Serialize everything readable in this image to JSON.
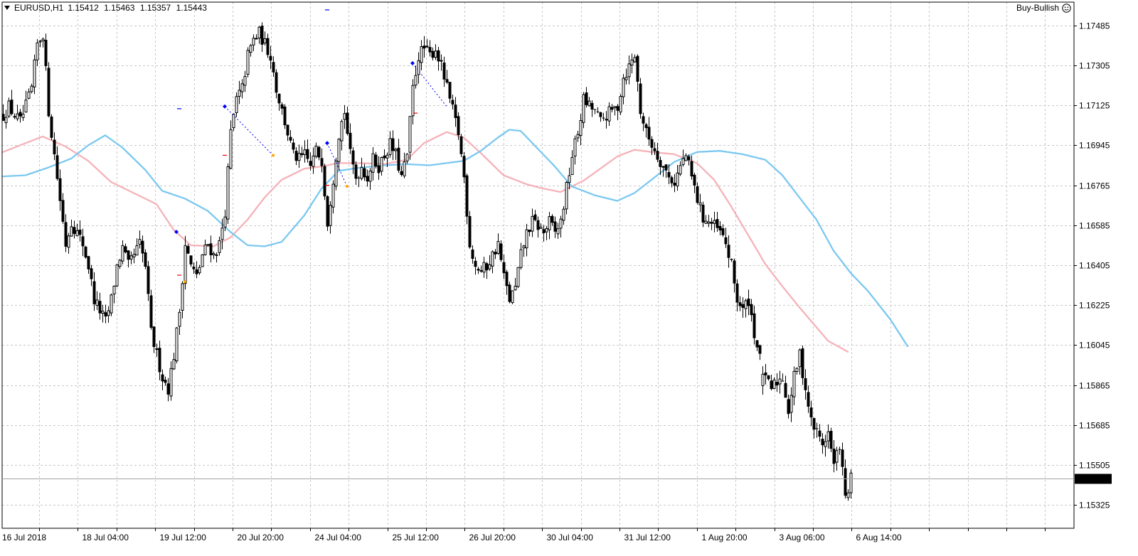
{
  "header": {
    "symbol": "EURUSD,H1",
    "open": "1.15412",
    "high": "1.15463",
    "low": "1.15357",
    "close": "1.15443"
  },
  "advisor": {
    "name": "Buy-Bullish",
    "icon": "smiley-icon"
  },
  "colors": {
    "bg": "#ffffff",
    "grid": "#c8c8c8",
    "candle": "#000000",
    "ma_fast": "#f5b2b8",
    "ma_slow": "#7cc8f0",
    "price_line": "#a0a0a0",
    "marker_blue": "#0000ff",
    "marker_red": "#ff0000",
    "marker_orange": "#ffa500"
  },
  "chart_data": {
    "type": "candlestick",
    "ylim": [
      1.1522,
      1.1759
    ],
    "y_ticks": [
      "1.17485",
      "1.17305",
      "1.17125",
      "1.16945",
      "1.16765",
      "1.16585",
      "1.16405",
      "1.16225",
      "1.16045",
      "1.15865",
      "1.15685",
      "1.15505",
      "1.15325"
    ],
    "x_ticks": [
      "16 Jul 2018",
      "18 Jul 04:00",
      "19 Jul 12:00",
      "20 Jul 20:00",
      "24 Jul 04:00",
      "25 Jul 12:00",
      "26 Jul 20:00",
      "30 Jul 04:00",
      "31 Jul 12:00",
      "1 Aug 20:00",
      "3 Aug 06:00",
      "6 Aug 14:00"
    ],
    "current_price": "1.15443",
    "close_path": [
      [
        0,
        1.1708
      ],
      [
        2,
        1.1712
      ],
      [
        4,
        1.1708
      ],
      [
        6,
        1.1705
      ],
      [
        8,
        1.1712
      ],
      [
        10,
        1.172
      ],
      [
        12,
        1.174
      ],
      [
        14,
        1.1745
      ],
      [
        16,
        1.171
      ],
      [
        18,
        1.169
      ],
      [
        20,
        1.167
      ],
      [
        22,
        1.165
      ],
      [
        24,
        1.166
      ],
      [
        26,
        1.1655
      ],
      [
        28,
        1.165
      ],
      [
        30,
        1.164
      ],
      [
        32,
        1.1625
      ],
      [
        34,
        1.162
      ],
      [
        36,
        1.1615
      ],
      [
        38,
        1.1625
      ],
      [
        40,
        1.164
      ],
      [
        42,
        1.1648
      ],
      [
        44,
        1.164
      ],
      [
        46,
        1.1645
      ],
      [
        48,
        1.165
      ],
      [
        50,
        1.164
      ],
      [
        52,
        1.161
      ],
      [
        54,
        1.16
      ],
      [
        56,
        1.159
      ],
      [
        58,
        1.1585
      ],
      [
        60,
        1.16
      ],
      [
        62,
        1.162
      ],
      [
        64,
        1.165
      ],
      [
        66,
        1.164
      ],
      [
        68,
        1.1635
      ],
      [
        70,
        1.1645
      ],
      [
        72,
        1.165
      ],
      [
        74,
        1.1645
      ],
      [
        76,
        1.165
      ],
      [
        78,
        1.1665
      ],
      [
        80,
        1.17
      ],
      [
        82,
        1.1715
      ],
      [
        84,
        1.172
      ],
      [
        86,
        1.1735
      ],
      [
        88,
        1.1742
      ],
      [
        90,
        1.1745
      ],
      [
        92,
        1.174
      ],
      [
        94,
        1.1735
      ],
      [
        96,
        1.172
      ],
      [
        98,
        1.171
      ],
      [
        100,
        1.17
      ],
      [
        102,
        1.169
      ],
      [
        104,
        1.1688
      ],
      [
        106,
        1.169
      ],
      [
        108,
        1.1685
      ],
      [
        110,
        1.1692
      ],
      [
        112,
        1.1688
      ],
      [
        114,
        1.166
      ],
      [
        116,
        1.168
      ],
      [
        118,
        1.17
      ],
      [
        120,
        1.171
      ],
      [
        122,
        1.169
      ],
      [
        124,
        1.168
      ],
      [
        126,
        1.1685
      ],
      [
        128,
        1.168
      ],
      [
        130,
        1.1688
      ],
      [
        132,
        1.1685
      ],
      [
        134,
        1.169
      ],
      [
        136,
        1.1695
      ],
      [
        138,
        1.169
      ],
      [
        140,
        1.168
      ],
      [
        142,
        1.169
      ],
      [
        144,
        1.172
      ],
      [
        146,
        1.1735
      ],
      [
        148,
        1.1738
      ],
      [
        150,
        1.1735
      ],
      [
        152,
        1.1738
      ],
      [
        154,
        1.173
      ],
      [
        156,
        1.172
      ],
      [
        158,
        1.171
      ],
      [
        160,
        1.17
      ],
      [
        162,
        1.168
      ],
      [
        164,
        1.165
      ],
      [
        166,
        1.164
      ],
      [
        168,
        1.1638
      ],
      [
        170,
        1.164
      ],
      [
        172,
        1.1645
      ],
      [
        174,
        1.165
      ],
      [
        176,
        1.1635
      ],
      [
        178,
        1.1625
      ],
      [
        180,
        1.163
      ],
      [
        182,
        1.1645
      ],
      [
        184,
        1.1655
      ],
      [
        186,
        1.166
      ],
      [
        188,
        1.1658
      ],
      [
        190,
        1.1655
      ],
      [
        192,
        1.166
      ],
      [
        194,
        1.1655
      ],
      [
        196,
        1.166
      ],
      [
        198,
        1.1675
      ],
      [
        200,
        1.169
      ],
      [
        202,
        1.17
      ],
      [
        204,
        1.1715
      ],
      [
        206,
        1.1712
      ],
      [
        208,
        1.171
      ],
      [
        210,
        1.1705
      ],
      [
        212,
        1.1708
      ],
      [
        214,
        1.171
      ],
      [
        216,
        1.1712
      ],
      [
        218,
        1.1725
      ],
      [
        220,
        1.173
      ],
      [
        222,
        1.1735
      ],
      [
        224,
        1.171
      ],
      [
        226,
        1.17
      ],
      [
        228,
        1.1695
      ],
      [
        230,
        1.169
      ],
      [
        232,
        1.1685
      ],
      [
        234,
        1.168
      ],
      [
        236,
        1.1678
      ],
      [
        238,
        1.1685
      ],
      [
        240,
        1.169
      ],
      [
        242,
        1.168
      ],
      [
        244,
        1.167
      ],
      [
        246,
        1.1662
      ],
      [
        248,
        1.166
      ],
      [
        250,
        1.1658
      ],
      [
        252,
        1.1655
      ],
      [
        254,
        1.165
      ],
      [
        256,
        1.164
      ],
      [
        258,
        1.1625
      ],
      [
        260,
        1.162
      ],
      [
        262,
        1.1625
      ],
      [
        264,
        1.161
      ],
      [
        266,
        1.1598
      ],
      [
        268,
        1.1588
      ],
      [
        270,
        1.1585
      ],
      [
        272,
        1.1588
      ],
      [
        274,
        1.159
      ],
      [
        276,
        1.1575
      ],
      [
        278,
        1.159
      ],
      [
        280,
        1.16
      ],
      [
        282,
        1.1585
      ],
      [
        284,
        1.157
      ],
      [
        286,
        1.1565
      ],
      [
        288,
        1.156
      ],
      [
        290,
        1.1565
      ],
      [
        292,
        1.155
      ],
      [
        294,
        1.156
      ],
      [
        296,
        1.1535
      ],
      [
        298,
        1.1544
      ]
    ],
    "series": [
      {
        "name": "",
        "color": "#f5b2b8",
        "points": [
          [
            0,
            1.16915
          ],
          [
            8,
            1.16955
          ],
          [
            14,
            1.16985
          ],
          [
            22,
            1.1694
          ],
          [
            30,
            1.16875
          ],
          [
            38,
            1.1678
          ],
          [
            46,
            1.1673
          ],
          [
            54,
            1.1668
          ],
          [
            60,
            1.16565
          ],
          [
            66,
            1.16495
          ],
          [
            74,
            1.1649
          ],
          [
            80,
            1.1653
          ],
          [
            86,
            1.1661
          ],
          [
            92,
            1.1671
          ],
          [
            98,
            1.1679
          ],
          [
            106,
            1.1684
          ],
          [
            112,
            1.1685
          ],
          [
            118,
            1.16865
          ],
          [
            126,
            1.16865
          ],
          [
            134,
            1.1686
          ],
          [
            142,
            1.1688
          ],
          [
            148,
            1.16955
          ],
          [
            156,
            1.17005
          ],
          [
            162,
            1.1698
          ],
          [
            168,
            1.1691
          ],
          [
            176,
            1.1681
          ],
          [
            184,
            1.1677
          ],
          [
            190,
            1.1675
          ],
          [
            196,
            1.16735
          ],
          [
            204,
            1.16785
          ],
          [
            210,
            1.1684
          ],
          [
            216,
            1.16895
          ],
          [
            222,
            1.16925
          ],
          [
            228,
            1.16915
          ],
          [
            236,
            1.16905
          ],
          [
            244,
            1.16865
          ],
          [
            250,
            1.1679
          ],
          [
            256,
            1.1667
          ],
          [
            262,
            1.1654
          ],
          [
            268,
            1.1641
          ],
          [
            274,
            1.1631
          ],
          [
            280,
            1.16215
          ],
          [
            286,
            1.16125
          ],
          [
            290,
            1.16065
          ],
          [
            297,
            1.16015
          ]
        ]
      },
      {
        "name": "",
        "color": "#7cc8f0",
        "points": [
          [
            0,
            1.16805
          ],
          [
            8,
            1.1681
          ],
          [
            16,
            1.16845
          ],
          [
            24,
            1.16885
          ],
          [
            30,
            1.16945
          ],
          [
            36,
            1.1699
          ],
          [
            42,
            1.16935
          ],
          [
            50,
            1.16835
          ],
          [
            56,
            1.1674
          ],
          [
            64,
            1.16705
          ],
          [
            72,
            1.1665
          ],
          [
            80,
            1.16555
          ],
          [
            86,
            1.16495
          ],
          [
            92,
            1.1649
          ],
          [
            98,
            1.1651
          ],
          [
            106,
            1.1663
          ],
          [
            112,
            1.1675
          ],
          [
            118,
            1.1683
          ],
          [
            126,
            1.16845
          ],
          [
            134,
            1.16855
          ],
          [
            142,
            1.1686
          ],
          [
            150,
            1.16855
          ],
          [
            156,
            1.16865
          ],
          [
            162,
            1.16875
          ],
          [
            168,
            1.1692
          ],
          [
            174,
            1.1698
          ],
          [
            178,
            1.17015
          ],
          [
            182,
            1.1701
          ],
          [
            188,
            1.1693
          ],
          [
            194,
            1.1685
          ],
          [
            200,
            1.1676
          ],
          [
            208,
            1.1672
          ],
          [
            216,
            1.16695
          ],
          [
            222,
            1.1673
          ],
          [
            228,
            1.1679
          ],
          [
            236,
            1.1687
          ],
          [
            244,
            1.16915
          ],
          [
            252,
            1.1692
          ],
          [
            260,
            1.16905
          ],
          [
            268,
            1.1688
          ],
          [
            274,
            1.1681
          ],
          [
            280,
            1.1671
          ],
          [
            286,
            1.1661
          ],
          [
            292,
            1.1647
          ],
          [
            298,
            1.1637
          ],
          [
            304,
            1.1629
          ],
          [
            312,
            1.1616
          ],
          [
            318,
            1.1604
          ]
        ]
      }
    ],
    "markers": [
      {
        "i": 61,
        "p": 1.16555,
        "type": "diamond",
        "color": "#0000ff"
      },
      {
        "i": 78,
        "p": 1.1712,
        "type": "diamond",
        "color": "#0000ff"
      },
      {
        "i": 114,
        "p": 1.16955,
        "type": "diamond",
        "color": "#0000ff"
      },
      {
        "i": 144,
        "p": 1.17315,
        "type": "diamond",
        "color": "#0000ff"
      },
      {
        "i": 62,
        "p": 1.1711,
        "type": "dash",
        "color": "#0000ff"
      },
      {
        "i": 114,
        "p": 1.17555,
        "type": "dash",
        "color": "#0000ff"
      },
      {
        "i": 78,
        "p": 1.169,
        "type": "dash",
        "color": "#ff0000"
      },
      {
        "i": 114,
        "p": 1.16765,
        "type": "dash",
        "color": "#ff0000"
      },
      {
        "i": 62,
        "p": 1.1636,
        "type": "dash",
        "color": "#ff0000"
      },
      {
        "i": 145,
        "p": 1.1709,
        "type": "dash",
        "color": "#ff0000"
      },
      {
        "i": 64,
        "p": 1.1633,
        "type": "dot",
        "color": "#ffa500"
      },
      {
        "i": 95,
        "p": 1.169,
        "type": "dot",
        "color": "#ffa500"
      },
      {
        "i": 121,
        "p": 1.1676,
        "type": "dot",
        "color": "#ffa500"
      }
    ],
    "dotted_segments": [
      {
        "from": [
          78,
          1.1712
        ],
        "to": [
          95,
          1.169
        ],
        "color": "#0000ff"
      },
      {
        "from": [
          144,
          1.17315
        ],
        "to": [
          156,
          1.1712
        ],
        "color": "#0000ff"
      },
      {
        "from": [
          114,
          1.16955
        ],
        "to": [
          121,
          1.1676
        ],
        "color": "#0000ff"
      }
    ]
  }
}
